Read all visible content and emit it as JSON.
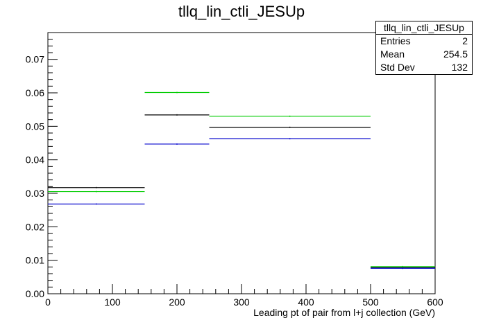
{
  "chart_data": {
    "type": "step",
    "title": "tllq_lin_ctli_JESUp",
    "xlabel": "Leading pt of pair from l+j collection (GeV)",
    "ylabel": "",
    "xlim": [
      0,
      600
    ],
    "ylim": [
      0,
      0.078
    ],
    "x_ticks": [
      0,
      100,
      200,
      300,
      400,
      500,
      600
    ],
    "y_ticks": [
      0,
      0.01,
      0.02,
      0.03,
      0.04,
      0.05,
      0.06,
      0.07
    ],
    "bin_edges": [
      0,
      150,
      250,
      500,
      600
    ],
    "series": [
      {
        "color": "#000000",
        "values": [
          0.0317,
          0.0534,
          0.0497,
          0.0078
        ]
      },
      {
        "color": "#00cc00",
        "values": [
          0.0305,
          0.0601,
          0.053,
          0.0081
        ]
      },
      {
        "color": "#0000cc",
        "values": [
          0.0268,
          0.0447,
          0.0463,
          0.0076
        ]
      }
    ],
    "grid": false
  },
  "stats_box": {
    "name": "tllq_lin_ctli_JESUp",
    "entries_label": "Entries",
    "entries_value": "2",
    "mean_label": "Mean",
    "mean_value": "254.5",
    "stddev_label": "Std Dev",
    "stddev_value": "132"
  }
}
